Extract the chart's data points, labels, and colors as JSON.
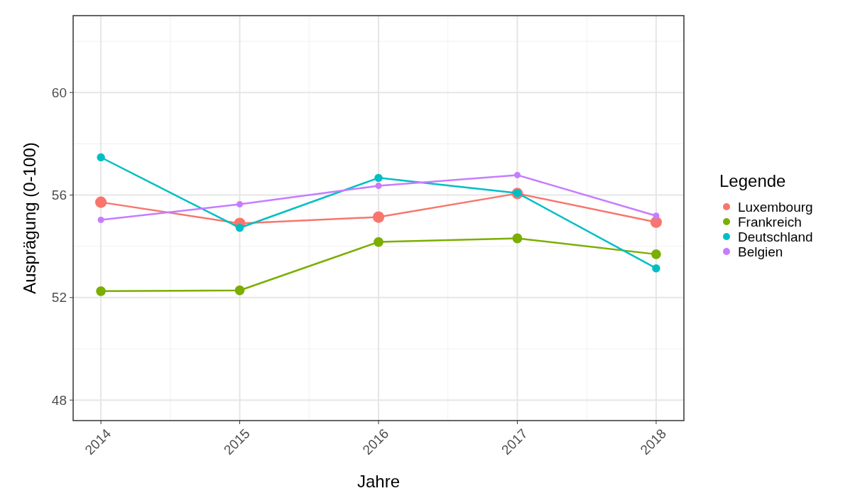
{
  "chart_data": {
    "type": "line",
    "xlabel": "Jahre",
    "ylabel": "Ausprägung (0-100)",
    "legend_title": "Legende",
    "x": [
      2014,
      2015,
      2016,
      2017,
      2018
    ],
    "xlim": [
      2013.8,
      2018.2
    ],
    "xticks": [
      2014,
      2015,
      2016,
      2017,
      2018
    ],
    "ylim": [
      47.2,
      63
    ],
    "yticks": [
      48,
      52,
      56,
      60
    ],
    "grid": true,
    "legend": "right",
    "marker": "circle",
    "line_style": "solid",
    "series": [
      {
        "name": "Luxembourg",
        "color": "#f8766d",
        "values": [
          55.72,
          54.89,
          55.14,
          56.06,
          54.94
        ]
      },
      {
        "name": "Frankreich",
        "color": "#7cae00",
        "values": [
          52.25,
          52.28,
          54.17,
          54.31,
          53.69
        ]
      },
      {
        "name": "Deutschland",
        "color": "#00bfc4",
        "values": [
          57.47,
          54.72,
          56.67,
          56.08,
          53.14
        ]
      },
      {
        "name": "Belgien",
        "color": "#c77cff",
        "values": [
          55.03,
          55.64,
          56.36,
          56.78,
          55.19
        ]
      }
    ]
  }
}
